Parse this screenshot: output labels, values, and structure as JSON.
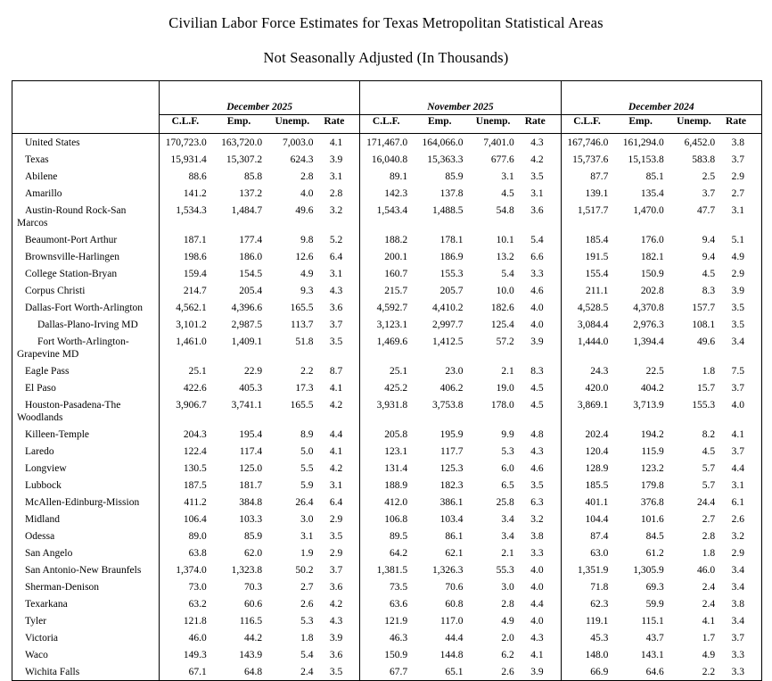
{
  "title": "Civilian Labor Force Estimates for Texas Metropolitan Statistical Areas",
  "subtitle": "Not Seasonally Adjusted (In Thousands)",
  "table": {
    "area_column_header": "",
    "column_groups": [
      {
        "label": "December 2025"
      },
      {
        "label": "November 2025"
      },
      {
        "label": "December 2024"
      }
    ],
    "sub_headers": [
      "C.L.F.",
      "Emp.",
      "Unemp.",
      "Rate"
    ],
    "rows": [
      {
        "area": "United States",
        "indent": 0,
        "values": [
          "170,723.0",
          "163,720.0",
          "7,003.0",
          "4.1",
          "171,467.0",
          "164,066.0",
          "7,401.0",
          "4.3",
          "167,746.0",
          "161,294.0",
          "6,452.0",
          "3.8"
        ]
      },
      {
        "area": "Texas",
        "indent": 0,
        "values": [
          "15,931.4",
          "15,307.2",
          "624.3",
          "3.9",
          "16,040.8",
          "15,363.3",
          "677.6",
          "4.2",
          "15,737.6",
          "15,153.8",
          "583.8",
          "3.7"
        ]
      },
      {
        "area": "Abilene",
        "indent": 0,
        "values": [
          "88.6",
          "85.8",
          "2.8",
          "3.1",
          "89.1",
          "85.9",
          "3.1",
          "3.5",
          "87.7",
          "85.1",
          "2.5",
          "2.9"
        ]
      },
      {
        "area": "Amarillo",
        "indent": 0,
        "values": [
          "141.2",
          "137.2",
          "4.0",
          "2.8",
          "142.3",
          "137.8",
          "4.5",
          "3.1",
          "139.1",
          "135.4",
          "3.7",
          "2.7"
        ]
      },
      {
        "area": "Austin-Round Rock-San Marcos",
        "indent": 0,
        "values": [
          "1,534.3",
          "1,484.7",
          "49.6",
          "3.2",
          "1,543.4",
          "1,488.5",
          "54.8",
          "3.6",
          "1,517.7",
          "1,470.0",
          "47.7",
          "3.1"
        ]
      },
      {
        "area": "Beaumont-Port Arthur",
        "indent": 0,
        "values": [
          "187.1",
          "177.4",
          "9.8",
          "5.2",
          "188.2",
          "178.1",
          "10.1",
          "5.4",
          "185.4",
          "176.0",
          "9.4",
          "5.1"
        ]
      },
      {
        "area": "Brownsville-Harlingen",
        "indent": 0,
        "values": [
          "198.6",
          "186.0",
          "12.6",
          "6.4",
          "200.1",
          "186.9",
          "13.2",
          "6.6",
          "191.5",
          "182.1",
          "9.4",
          "4.9"
        ]
      },
      {
        "area": "College Station-Bryan",
        "indent": 0,
        "values": [
          "159.4",
          "154.5",
          "4.9",
          "3.1",
          "160.7",
          "155.3",
          "5.4",
          "3.3",
          "155.4",
          "150.9",
          "4.5",
          "2.9"
        ]
      },
      {
        "area": "Corpus Christi",
        "indent": 0,
        "values": [
          "214.7",
          "205.4",
          "9.3",
          "4.3",
          "215.7",
          "205.7",
          "10.0",
          "4.6",
          "211.1",
          "202.8",
          "8.3",
          "3.9"
        ]
      },
      {
        "area": "Dallas-Fort Worth-Arlington",
        "indent": 0,
        "values": [
          "4,562.1",
          "4,396.6",
          "165.5",
          "3.6",
          "4,592.7",
          "4,410.2",
          "182.6",
          "4.0",
          "4,528.5",
          "4,370.8",
          "157.7",
          "3.5"
        ]
      },
      {
        "area": "Dallas-Plano-Irving MD",
        "indent": 1,
        "values": [
          "3,101.2",
          "2,987.5",
          "113.7",
          "3.7",
          "3,123.1",
          "2,997.7",
          "125.4",
          "4.0",
          "3,084.4",
          "2,976.3",
          "108.1",
          "3.5"
        ]
      },
      {
        "area": "Fort Worth-Arlington-Grapevine MD",
        "indent": 1,
        "values": [
          "1,461.0",
          "1,409.1",
          "51.8",
          "3.5",
          "1,469.6",
          "1,412.5",
          "57.2",
          "3.9",
          "1,444.0",
          "1,394.4",
          "49.6",
          "3.4"
        ]
      },
      {
        "area": "Eagle Pass",
        "indent": 0,
        "values": [
          "25.1",
          "22.9",
          "2.2",
          "8.7",
          "25.1",
          "23.0",
          "2.1",
          "8.3",
          "24.3",
          "22.5",
          "1.8",
          "7.5"
        ]
      },
      {
        "area": "El Paso",
        "indent": 0,
        "values": [
          "422.6",
          "405.3",
          "17.3",
          "4.1",
          "425.2",
          "406.2",
          "19.0",
          "4.5",
          "420.0",
          "404.2",
          "15.7",
          "3.7"
        ]
      },
      {
        "area": "Houston-Pasadena-The Woodlands",
        "indent": 0,
        "values": [
          "3,906.7",
          "3,741.1",
          "165.5",
          "4.2",
          "3,931.8",
          "3,753.8",
          "178.0",
          "4.5",
          "3,869.1",
          "3,713.9",
          "155.3",
          "4.0"
        ]
      },
      {
        "area": "Killeen-Temple",
        "indent": 0,
        "values": [
          "204.3",
          "195.4",
          "8.9",
          "4.4",
          "205.8",
          "195.9",
          "9.9",
          "4.8",
          "202.4",
          "194.2",
          "8.2",
          "4.1"
        ]
      },
      {
        "area": "Laredo",
        "indent": 0,
        "values": [
          "122.4",
          "117.4",
          "5.0",
          "4.1",
          "123.1",
          "117.7",
          "5.3",
          "4.3",
          "120.4",
          "115.9",
          "4.5",
          "3.7"
        ]
      },
      {
        "area": "Longview",
        "indent": 0,
        "values": [
          "130.5",
          "125.0",
          "5.5",
          "4.2",
          "131.4",
          "125.3",
          "6.0",
          "4.6",
          "128.9",
          "123.2",
          "5.7",
          "4.4"
        ]
      },
      {
        "area": "Lubbock",
        "indent": 0,
        "values": [
          "187.5",
          "181.7",
          "5.9",
          "3.1",
          "188.9",
          "182.3",
          "6.5",
          "3.5",
          "185.5",
          "179.8",
          "5.7",
          "3.1"
        ]
      },
      {
        "area": "McAllen-Edinburg-Mission",
        "indent": 0,
        "values": [
          "411.2",
          "384.8",
          "26.4",
          "6.4",
          "412.0",
          "386.1",
          "25.8",
          "6.3",
          "401.1",
          "376.8",
          "24.4",
          "6.1"
        ]
      },
      {
        "area": "Midland",
        "indent": 0,
        "values": [
          "106.4",
          "103.3",
          "3.0",
          "2.9",
          "106.8",
          "103.4",
          "3.4",
          "3.2",
          "104.4",
          "101.6",
          "2.7",
          "2.6"
        ]
      },
      {
        "area": "Odessa",
        "indent": 0,
        "values": [
          "89.0",
          "85.9",
          "3.1",
          "3.5",
          "89.5",
          "86.1",
          "3.4",
          "3.8",
          "87.4",
          "84.5",
          "2.8",
          "3.2"
        ]
      },
      {
        "area": "San Angelo",
        "indent": 0,
        "values": [
          "63.8",
          "62.0",
          "1.9",
          "2.9",
          "64.2",
          "62.1",
          "2.1",
          "3.3",
          "63.0",
          "61.2",
          "1.8",
          "2.9"
        ]
      },
      {
        "area": "San Antonio-New Braunfels",
        "indent": 0,
        "values": [
          "1,374.0",
          "1,323.8",
          "50.2",
          "3.7",
          "1,381.5",
          "1,326.3",
          "55.3",
          "4.0",
          "1,351.9",
          "1,305.9",
          "46.0",
          "3.4"
        ]
      },
      {
        "area": "Sherman-Denison",
        "indent": 0,
        "values": [
          "73.0",
          "70.3",
          "2.7",
          "3.6",
          "73.5",
          "70.6",
          "3.0",
          "4.0",
          "71.8",
          "69.3",
          "2.4",
          "3.4"
        ]
      },
      {
        "area": "Texarkana",
        "indent": 0,
        "values": [
          "63.2",
          "60.6",
          "2.6",
          "4.2",
          "63.6",
          "60.8",
          "2.8",
          "4.4",
          "62.3",
          "59.9",
          "2.4",
          "3.8"
        ]
      },
      {
        "area": "Tyler",
        "indent": 0,
        "values": [
          "121.8",
          "116.5",
          "5.3",
          "4.3",
          "121.9",
          "117.0",
          "4.9",
          "4.0",
          "119.1",
          "115.1",
          "4.1",
          "3.4"
        ]
      },
      {
        "area": "Victoria",
        "indent": 0,
        "values": [
          "46.0",
          "44.2",
          "1.8",
          "3.9",
          "46.3",
          "44.4",
          "2.0",
          "4.3",
          "45.3",
          "43.7",
          "1.7",
          "3.7"
        ]
      },
      {
        "area": "Waco",
        "indent": 0,
        "values": [
          "149.3",
          "143.9",
          "5.4",
          "3.6",
          "150.9",
          "144.8",
          "6.2",
          "4.1",
          "148.0",
          "143.1",
          "4.9",
          "3.3"
        ]
      },
      {
        "area": "Wichita Falls",
        "indent": 0,
        "values": [
          "67.1",
          "64.8",
          "2.4",
          "3.5",
          "67.7",
          "65.1",
          "2.6",
          "3.9",
          "66.9",
          "64.6",
          "2.2",
          "3.3"
        ]
      }
    ]
  }
}
